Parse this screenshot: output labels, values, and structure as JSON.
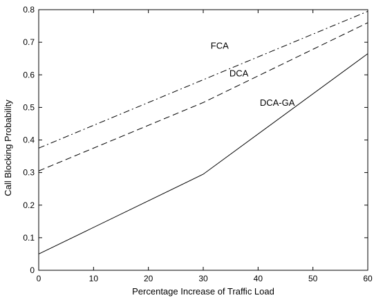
{
  "chart_data": {
    "type": "line",
    "title": "",
    "xlabel": "Percentage Increase of Traffic Load",
    "ylabel": "Call Blocking Probability",
    "xlim": [
      0,
      60
    ],
    "ylim": [
      0,
      0.8
    ],
    "xticks": [
      0,
      10,
      20,
      30,
      40,
      50,
      60
    ],
    "yticks": [
      0,
      0.1,
      0.2,
      0.3,
      0.4,
      0.5,
      0.6,
      0.7,
      0.8
    ],
    "xtick_labels": [
      "0",
      "10",
      "20",
      "30",
      "40",
      "50",
      "60"
    ],
    "ytick_labels": [
      "0",
      "0.1",
      "0.2",
      "0.3",
      "0.4",
      "0.5",
      "0.6",
      "0.7",
      "0.8"
    ],
    "grid": false,
    "legend": "inline labels",
    "series": [
      {
        "name": "FCA",
        "style": "dashdot",
        "color": "#000000",
        "x": [
          0,
          30,
          60
        ],
        "y": [
          0.375,
          0.585,
          0.795
        ],
        "label_at": [
          33,
          0.68
        ]
      },
      {
        "name": "DCA",
        "style": "dashed",
        "color": "#000000",
        "x": [
          0,
          30,
          60
        ],
        "y": [
          0.305,
          0.515,
          0.76
        ],
        "label_at": [
          36.5,
          0.595
        ]
      },
      {
        "name": "DCA-GA",
        "style": "solid",
        "color": "#000000",
        "x": [
          0,
          30,
          60
        ],
        "y": [
          0.05,
          0.295,
          0.665
        ],
        "label_at": [
          43.5,
          0.505
        ]
      }
    ]
  }
}
